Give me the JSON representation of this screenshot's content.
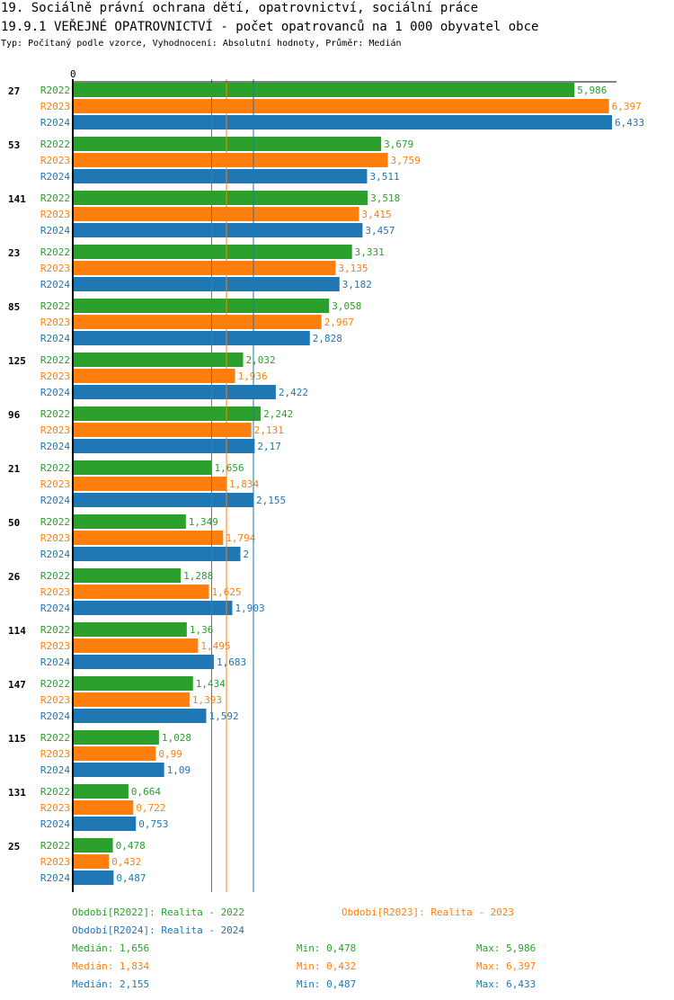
{
  "header": {
    "title": "19. Sociálně právní ochrana dětí, opatrovnictví, sociální práce",
    "subtitle": "19.9.1 VEŘEJNÉ OPATROVNICTVÍ - počet opatrovanců na 1 000 obyvatel obce",
    "info": "Typ: Počítaný podle vzorce, Vyhodnocení: Absolutní hodnoty, Průměr: Medián"
  },
  "chart_data": {
    "type": "bar",
    "orientation": "horizontal",
    "x_tick_labels": [
      "0"
    ],
    "xlim": [
      0,
      6.433
    ],
    "categories": [
      "27",
      "53",
      "141",
      "23",
      "85",
      "125",
      "96",
      "21",
      "50",
      "26",
      "114",
      "147",
      "115",
      "131",
      "25"
    ],
    "series": [
      {
        "name": "R2022",
        "color": "#2ca02c",
        "values": [
          5.986,
          3.679,
          3.518,
          3.331,
          3.058,
          2.032,
          2.242,
          1.656,
          1.349,
          1.288,
          1.36,
          1.434,
          1.028,
          0.664,
          0.478
        ]
      },
      {
        "name": "R2023",
        "color": "#ff7f0e",
        "values": [
          6.397,
          3.759,
          3.415,
          3.135,
          2.967,
          1.936,
          2.131,
          1.834,
          1.794,
          1.625,
          1.495,
          1.393,
          0.99,
          0.722,
          0.432
        ]
      },
      {
        "name": "R2024",
        "color": "#1f77b4",
        "values": [
          6.433,
          3.511,
          3.457,
          3.182,
          2.828,
          2.422,
          2.17,
          2.155,
          2,
          1.903,
          1.683,
          1.592,
          1.09,
          0.753,
          0.487
        ]
      }
    ],
    "median_lines": [
      1.656,
      1.834,
      2.155
    ]
  },
  "legend": {
    "periods": [
      "Období[R2022]: Realita - 2022",
      "Období[R2023]: Realita - 2023",
      "Období[R2024]: Realita - 2024"
    ],
    "stats": [
      {
        "median": "Medián: 1,656",
        "min": "Min: 0,478",
        "max": "Max: 5,986"
      },
      {
        "median": "Medián: 1,834",
        "min": "Min: 0,432",
        "max": "Max: 6,397"
      },
      {
        "median": "Medián: 2,155",
        "min": "Min: 0,487",
        "max": "Max: 6,433"
      }
    ]
  }
}
